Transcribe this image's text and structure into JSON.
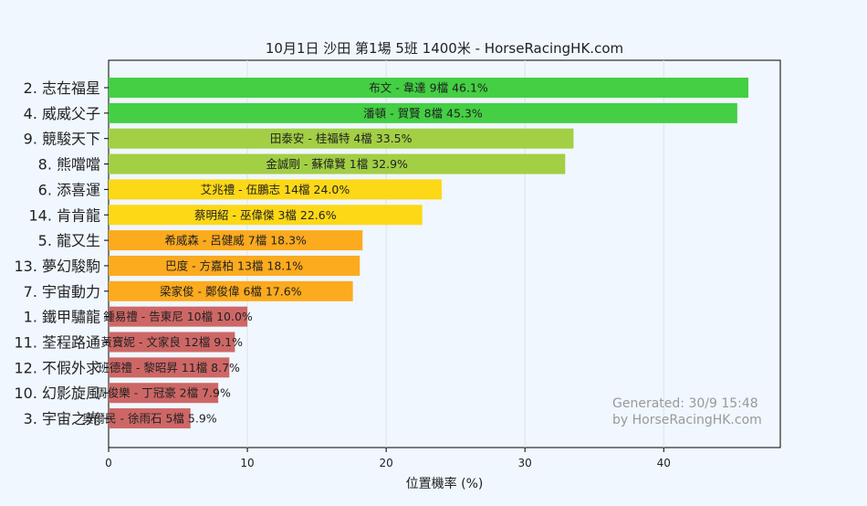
{
  "chart_data": {
    "type": "bar",
    "orientation": "horizontal",
    "title": "10月1日  沙田  第1場  5班  1400米 - HorseRacingHK.com",
    "xlabel": "位置機率 (%)",
    "ylabel": "",
    "xlim": [
      0,
      48.4
    ],
    "xticks": [
      0,
      10,
      20,
      30,
      40
    ],
    "grid": "vertical",
    "categories": [
      "2. 志在福星",
      "4. 威威父子",
      "9. 競駿天下",
      "8. 熊噹噹",
      "6. 添喜運",
      "14. 肯肯龍",
      "5. 龍又生",
      "13. 夢幻駿駒",
      "7. 宇宙動力",
      "1. 鐵甲驌龍",
      "11. 荃程路通",
      "12. 不假外求",
      "10. 幻影旋風",
      "3. 宇宙之光"
    ],
    "values": [
      46.1,
      45.3,
      33.5,
      32.9,
      24.0,
      22.6,
      18.3,
      18.1,
      17.6,
      10.0,
      9.1,
      8.7,
      7.9,
      5.9
    ],
    "bar_labels": [
      "布文 - 韋達 9檔  46.1%",
      "潘頓 - 賀賢 8檔  45.3%",
      "田泰安 - 桂福特 4檔  33.5%",
      "金誠剛 - 蘇偉賢 1檔  32.9%",
      "艾兆禮 - 伍鵬志 14檔  24.0%",
      "蔡明紹 - 巫偉傑 3檔  22.6%",
      "希威森 - 呂健威 7檔  18.3%",
      "巴度 - 方嘉柏 13檔  18.1%",
      "梁家俊 - 鄭俊偉 6檔  17.6%",
      "鍾易禮 - 告東尼 10檔  10.0%",
      "黃寶妮 - 文家良 12檔  9.1%",
      "班德禮 - 黎昭昇 11檔  8.7%",
      "周俊樂 - 丁冠豪 2檔  7.9%",
      "奧爾民 - 徐雨石 5檔  5.9%"
    ],
    "colors": [
      "#44cf44",
      "#44cf44",
      "#a2cf44",
      "#a2cf44",
      "#fcd817",
      "#fcd817",
      "#fcaa1e",
      "#fcaa1e",
      "#fcaa1e",
      "#cd6766",
      "#cd6766",
      "#cd6766",
      "#cd6766",
      "#cd6766"
    ],
    "annotation": [
      "Generated: 30/9 15:48",
      "by HorseRacingHK.com"
    ]
  }
}
